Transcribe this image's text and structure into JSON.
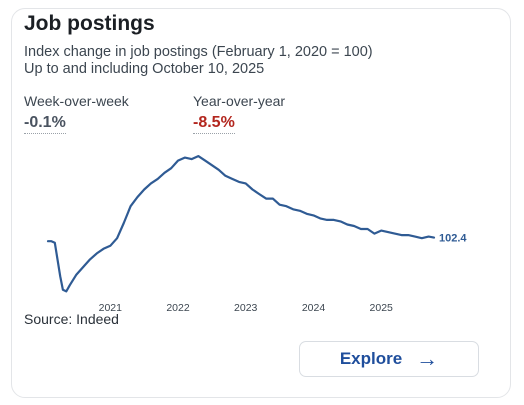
{
  "card": {
    "title": "Job postings",
    "subtitle": "Index change in job postings (February 1, 2020 = 100)",
    "subtitle2": "Up to and including October 10, 2025",
    "source": "Source: Indeed"
  },
  "metrics": {
    "wow": {
      "label": "Week-over-week",
      "value": "-0.1%"
    },
    "yoy": {
      "label": "Year-over-year",
      "value": "-8.5%"
    }
  },
  "explore": {
    "label": "Explore",
    "icon": "arrow-right-icon"
  },
  "colors": {
    "line": "#2f5b94",
    "negative": "#b3261e",
    "accent": "#1f4e9c"
  },
  "chart_data": {
    "type": "line",
    "title": "Job postings",
    "xlabel": "",
    "ylabel": "",
    "x_ticks": [
      "2021",
      "2022",
      "2023",
      "2024",
      "2025"
    ],
    "x_tick_values": [
      2021,
      2022,
      2023,
      2024,
      2025
    ],
    "xlim": [
      2020.08,
      2025.78
    ],
    "ylim": [
      60,
      160
    ],
    "grid": false,
    "end_label": "102.4",
    "series": [
      {
        "x": [
          2020.08,
          2020.13,
          2020.18,
          2020.22,
          2020.26,
          2020.3,
          2020.35,
          2020.4,
          2020.5,
          2020.6,
          2020.7,
          2020.8,
          2020.9,
          2021.0,
          2021.1,
          2021.2,
          2021.3,
          2021.4,
          2021.5,
          2021.6,
          2021.7,
          2021.8,
          2021.9,
          2022.0,
          2022.1,
          2022.2,
          2022.3,
          2022.4,
          2022.5,
          2022.6,
          2022.7,
          2022.8,
          2022.9,
          2023.0,
          2023.1,
          2023.2,
          2023.3,
          2023.4,
          2023.5,
          2023.6,
          2023.7,
          2023.8,
          2023.9,
          2024.0,
          2024.1,
          2024.2,
          2024.3,
          2024.4,
          2024.5,
          2024.6,
          2024.7,
          2024.8,
          2024.9,
          2025.0,
          2025.1,
          2025.2,
          2025.3,
          2025.4,
          2025.5,
          2025.6,
          2025.7,
          2025.78
        ],
        "values": [
          100,
          100,
          99,
          88,
          77,
          68,
          67,
          71,
          78,
          83,
          88,
          92,
          95,
          97,
          102,
          112,
          123,
          129,
          134,
          138,
          141,
          145,
          148,
          153,
          155,
          154,
          156,
          153,
          150,
          147,
          143,
          141,
          139,
          138,
          134,
          131,
          128,
          128,
          124,
          123,
          121,
          120,
          118,
          117,
          115,
          114,
          114,
          113,
          111,
          110,
          108,
          108,
          105,
          107,
          106,
          105,
          104,
          104,
          103,
          102,
          103,
          102.4
        ]
      }
    ]
  }
}
